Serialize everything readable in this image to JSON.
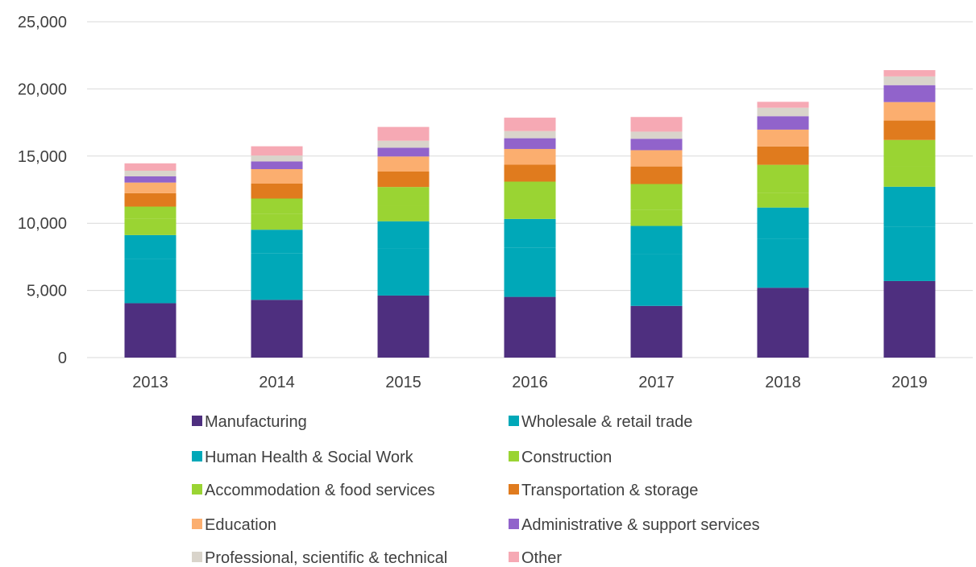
{
  "chart_data": {
    "type": "bar",
    "stacked": true,
    "title": "",
    "xlabel": "",
    "ylabel": "",
    "ylim": [
      0,
      25000
    ],
    "yticks": [
      "0",
      "5,000",
      "10,000",
      "15,000",
      "20,000",
      "25,000"
    ],
    "grid": "horizontal",
    "legend_position": "bottom",
    "categories": [
      "2013",
      "2014",
      "2015",
      "2016",
      "2017",
      "2018",
      "2019"
    ],
    "series": [
      {
        "name": "Manufacturing",
        "color": "#4e2f7f",
        "values": [
          4050,
          4300,
          4620,
          4520,
          3850,
          5200,
          5700
        ]
      },
      {
        "name": "Wholesale & retail trade",
        "color": "#00a8b8",
        "values": [
          3300,
          3450,
          3530,
          3680,
          3850,
          3620,
          4050
        ]
      },
      {
        "name": "Human Health & Social Work",
        "color": "#00a8b8",
        "values": [
          1770,
          1770,
          2000,
          2120,
          2100,
          2350,
          2970
        ]
      },
      {
        "name": "Construction",
        "color": "#9ad433",
        "values": [
          1200,
          1170,
          1180,
          1190,
          1180,
          1080,
          1520
        ]
      },
      {
        "name": "Accommodation & food services",
        "color": "#9ad433",
        "values": [
          920,
          1150,
          1370,
          1590,
          1940,
          2100,
          1960
        ]
      },
      {
        "name": "Transportation & storage",
        "color": "#e07b1e",
        "values": [
          1000,
          1110,
          1150,
          1260,
          1310,
          1370,
          1450
        ]
      },
      {
        "name": "Education",
        "color": "#fbae6f",
        "values": [
          790,
          1080,
          1120,
          1170,
          1210,
          1250,
          1370
        ]
      },
      {
        "name": "Administrative & support services",
        "color": "#9163cb",
        "values": [
          460,
          570,
          650,
          800,
          850,
          1000,
          1260
        ]
      },
      {
        "name": "Professional, scientific & technical",
        "color": "#d9d4cb",
        "values": [
          420,
          440,
          520,
          530,
          530,
          630,
          650
        ]
      },
      {
        "name": "Other",
        "color": "#f6a9b4",
        "values": [
          550,
          690,
          1030,
          1000,
          1090,
          440,
          470
        ]
      }
    ]
  }
}
